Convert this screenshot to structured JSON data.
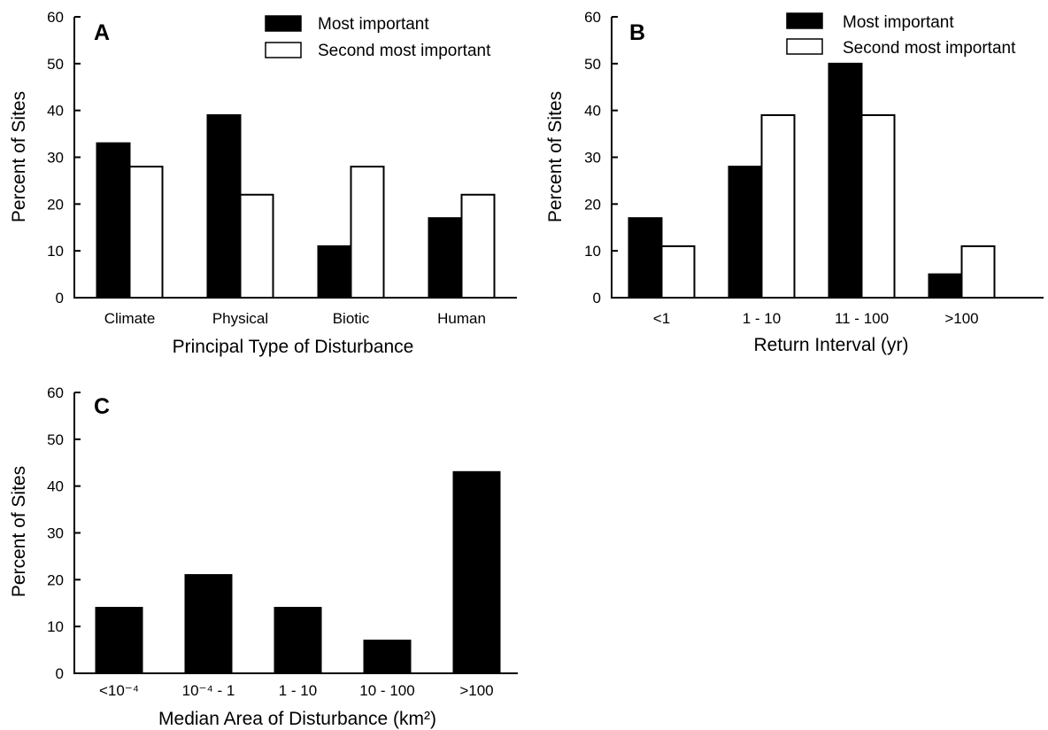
{
  "chart_data": [
    {
      "type": "bar",
      "panel_label": "A",
      "xlabel": "Principal Type of Disturbance",
      "ylabel": "Percent of Sites",
      "ylim": [
        0,
        60
      ],
      "yticks": [
        0,
        10,
        20,
        30,
        40,
        50,
        60
      ],
      "grid": false,
      "legend": {
        "position": "top-right",
        "entries": [
          "Most important",
          "Second most important"
        ]
      },
      "categories": [
        "Climate",
        "Physical",
        "Biotic",
        "Human"
      ],
      "series": [
        {
          "name": "Most important",
          "color": "#000000",
          "values": [
            33,
            39,
            11,
            17
          ]
        },
        {
          "name": "Second most important",
          "color": "#ffffff",
          "values": [
            28,
            22,
            28,
            22
          ]
        }
      ]
    },
    {
      "type": "bar",
      "panel_label": "B",
      "xlabel": "Return Interval (yr)",
      "ylabel": "Percent of Sites",
      "ylim": [
        0,
        60
      ],
      "yticks": [
        0,
        10,
        20,
        30,
        40,
        50,
        60
      ],
      "grid": false,
      "legend": {
        "position": "top-right",
        "entries": [
          "Most important",
          "Second most important"
        ]
      },
      "categories": [
        "<1",
        "1 - 10",
        "11 - 100",
        ">100"
      ],
      "series": [
        {
          "name": "Most important",
          "color": "#000000",
          "values": [
            17,
            28,
            50,
            5
          ]
        },
        {
          "name": "Second most important",
          "color": "#ffffff",
          "values": [
            11,
            39,
            39,
            11
          ]
        }
      ]
    },
    {
      "type": "bar",
      "panel_label": "C",
      "xlabel": "Median Area of Disturbance (km²)",
      "ylabel": "Percent of Sites",
      "ylim": [
        0,
        60
      ],
      "yticks": [
        0,
        10,
        20,
        30,
        40,
        50,
        60
      ],
      "grid": false,
      "categories": [
        "<10⁻⁴",
        "10⁻⁴ - 1",
        "1 - 10",
        "10 - 100",
        ">100"
      ],
      "series": [
        {
          "color": "#000000",
          "values": [
            14,
            21,
            14,
            7,
            43
          ]
        }
      ]
    }
  ]
}
